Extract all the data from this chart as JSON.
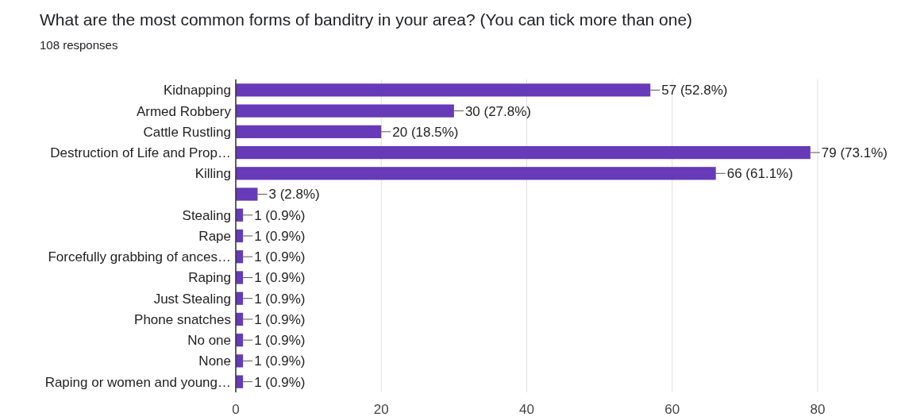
{
  "chart_data": {
    "type": "bar",
    "orientation": "horizontal",
    "title": "What are the most common forms of banditry in your area? (You can tick more than one)",
    "subtitle": "108 responses",
    "categories": [
      "Kidnapping",
      "Armed Robbery",
      "Cattle Rustling",
      "Destruction of Life and Prop…",
      "Killing",
      null,
      "Stealing",
      "Rape",
      "Forcefully grabbing of ances…",
      "Raping",
      "Just Stealing",
      "Phone snatches",
      "No one",
      "None",
      "Raping or women and young…"
    ],
    "values": [
      57,
      30,
      20,
      79,
      66,
      3,
      1,
      1,
      1,
      1,
      1,
      1,
      1,
      1,
      1
    ],
    "value_labels": [
      "57 (52.8%)",
      "30 (27.8%)",
      "20 (18.5%)",
      "79 (73.1%)",
      "66 (61.1%)",
      "3 (2.8%)",
      "1 (0.9%)",
      "1 (0.9%)",
      "1 (0.9%)",
      "1 (0.9%)",
      "1 (0.9%)",
      "1 (0.9%)",
      "1 (0.9%)",
      "1 (0.9%)",
      "1 (0.9%)"
    ],
    "color": "#673ab7",
    "xlim": [
      0,
      80
    ],
    "xticks": [
      0,
      20,
      40,
      60,
      80
    ],
    "grid": "x"
  }
}
